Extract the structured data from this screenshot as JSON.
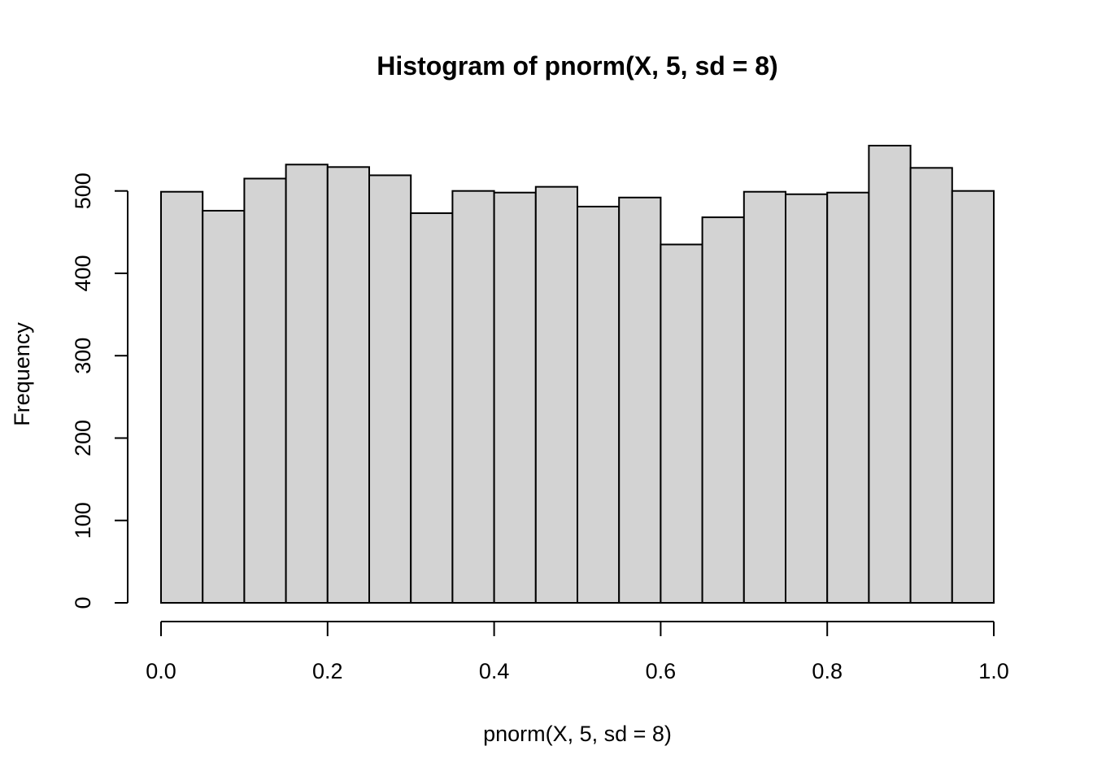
{
  "chart_data": {
    "type": "bar",
    "title": "Histogram of pnorm(X, 5, sd = 8)",
    "xlabel": "pnorm(X, 5, sd = 8)",
    "ylabel": "Frequency",
    "bin_edges": [
      0.0,
      0.05,
      0.1,
      0.15,
      0.2,
      0.25,
      0.3,
      0.35,
      0.4,
      0.45,
      0.5,
      0.55,
      0.6,
      0.65,
      0.7,
      0.75,
      0.8,
      0.85,
      0.9,
      0.95,
      1.0
    ],
    "values": [
      499,
      476,
      515,
      532,
      529,
      519,
      473,
      500,
      498,
      505,
      481,
      492,
      435,
      468,
      499,
      496,
      498,
      555,
      528,
      500
    ],
    "xlim": [
      0,
      1
    ],
    "ylim": [
      0,
      555
    ],
    "x_ticks": [
      0.0,
      0.2,
      0.4,
      0.6,
      0.8,
      1.0
    ],
    "x_tick_labels": [
      "0.0",
      "0.2",
      "0.4",
      "0.6",
      "0.8",
      "1.0"
    ],
    "y_ticks": [
      0,
      100,
      200,
      300,
      400,
      500
    ],
    "y_tick_labels": [
      "0",
      "100",
      "200",
      "300",
      "400",
      "500"
    ],
    "bar_fill": "#d3d3d3",
    "bar_stroke": "#000000",
    "grid": false,
    "legend": "none"
  }
}
